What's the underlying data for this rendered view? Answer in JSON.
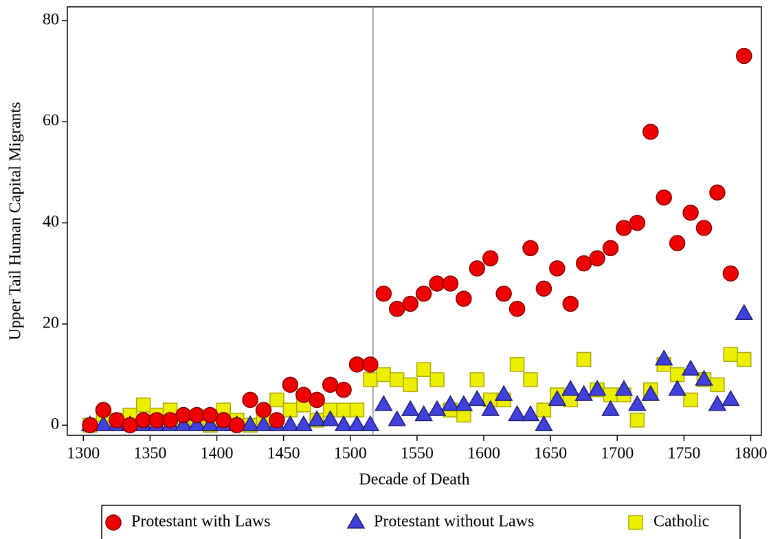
{
  "chart_data": {
    "type": "scatter",
    "xlabel": "Decade of Death",
    "ylabel": "Upper Tail Human Capital Migrants",
    "x": [
      1305,
      1315,
      1325,
      1335,
      1345,
      1355,
      1365,
      1375,
      1385,
      1395,
      1405,
      1415,
      1425,
      1435,
      1445,
      1455,
      1465,
      1475,
      1485,
      1495,
      1505,
      1515,
      1525,
      1535,
      1545,
      1555,
      1565,
      1575,
      1585,
      1595,
      1605,
      1615,
      1625,
      1635,
      1645,
      1655,
      1665,
      1675,
      1685,
      1695,
      1705,
      1715,
      1725,
      1735,
      1745,
      1755,
      1765,
      1775,
      1785,
      1795
    ],
    "series": [
      {
        "name": "Protestant with Laws",
        "color": "#ee0000",
        "marker": "circle",
        "values": [
          0,
          3,
          1,
          0,
          1,
          1,
          1,
          2,
          2,
          2,
          1,
          0,
          5,
          3,
          1,
          8,
          6,
          5,
          8,
          7,
          12,
          12,
          26,
          23,
          24,
          26,
          28,
          28,
          25,
          31,
          33,
          26,
          23,
          35,
          27,
          31,
          24,
          32,
          33,
          35,
          39,
          40,
          58,
          45,
          36,
          42,
          39,
          46,
          30,
          73
        ]
      },
      {
        "name": "Protestant without Laws",
        "color": "#4040dd",
        "marker": "triangle",
        "values": [
          0,
          0,
          0,
          0,
          0,
          0,
          0,
          0,
          0,
          0,
          0,
          0,
          0,
          0,
          0,
          0,
          0,
          1,
          1,
          0,
          0,
          0,
          4,
          1,
          3,
          2,
          3,
          4,
          4,
          5,
          3,
          6,
          2,
          2,
          0,
          5,
          7,
          6,
          7,
          3,
          7,
          4,
          6,
          13,
          7,
          11,
          9,
          4,
          5,
          22
        ]
      },
      {
        "name": "Catholic",
        "color": "#eeee00",
        "marker": "square",
        "values": [
          0,
          2,
          1,
          2,
          4,
          2,
          3,
          1,
          1,
          0,
          3,
          1,
          0,
          1,
          5,
          3,
          4,
          1,
          3,
          3,
          3,
          9,
          10,
          9,
          8,
          11,
          9,
          3,
          2,
          9,
          5,
          5,
          12,
          9,
          3,
          6,
          5,
          13,
          7,
          6,
          6,
          1,
          7,
          12,
          10,
          5,
          9,
          8,
          14,
          13
        ]
      }
    ],
    "xlim": [
      1288,
      1808
    ],
    "xticks": [
      1300,
      1350,
      1400,
      1450,
      1500,
      1550,
      1600,
      1650,
      1700,
      1750,
      1800
    ],
    "ylim": [
      -2,
      82.7
    ],
    "yticks": [
      0,
      20,
      40,
      60,
      80
    ],
    "vline": 1517
  }
}
